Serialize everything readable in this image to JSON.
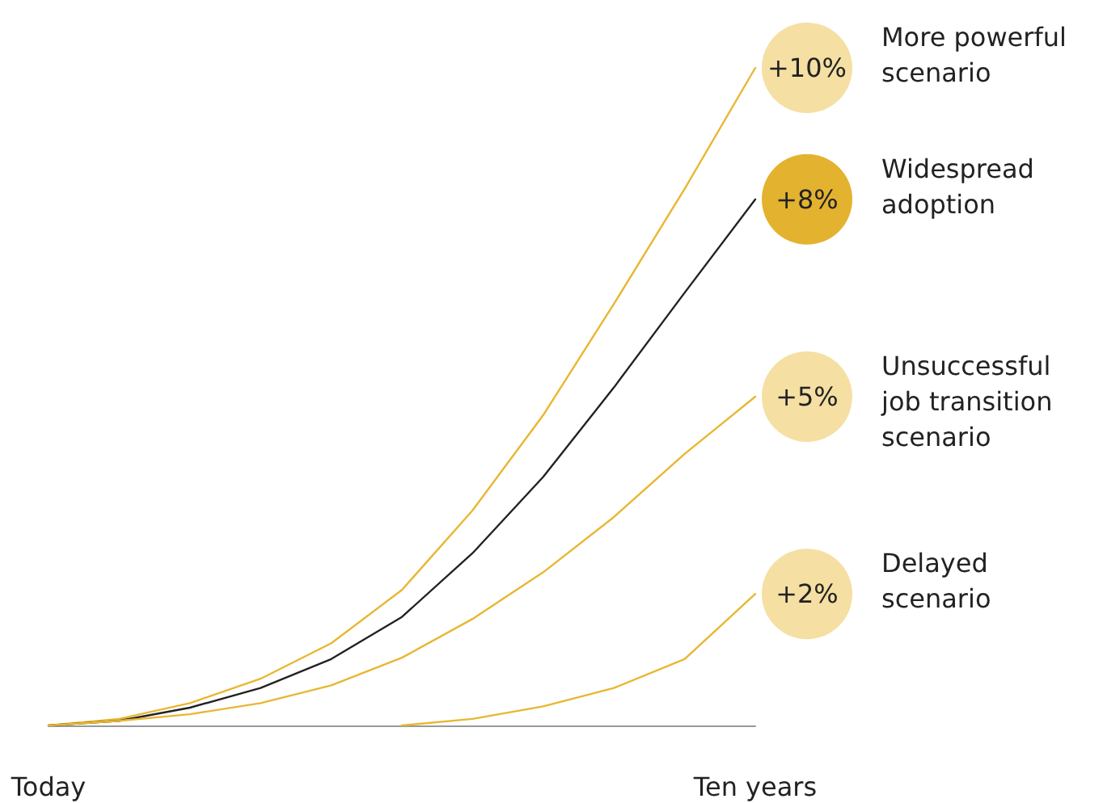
{
  "chart_data": {
    "type": "line",
    "categories": [
      "Today",
      null,
      null,
      null,
      null,
      null,
      null,
      null,
      null,
      null,
      "Ten years"
    ],
    "series": [
      {
        "name": "More powerful scenario",
        "color": "#e8b731",
        "values": [
          0,
          0.1,
          0.34,
          0.71,
          1.25,
          2.06,
          3.27,
          4.72,
          6.41,
          8.16,
          10
        ],
        "value_labels": [
          null,
          null,
          null,
          null,
          null,
          null,
          null,
          null,
          null,
          null,
          "+10%"
        ]
      },
      {
        "name": "Widespread adoption",
        "color": "#222222",
        "values": [
          0,
          0.07,
          0.27,
          0.57,
          1.01,
          1.65,
          2.62,
          3.78,
          5.14,
          6.58,
          8
        ],
        "value_labels": [
          null,
          null,
          null,
          null,
          null,
          null,
          null,
          null,
          null,
          null,
          "+8%"
        ]
      },
      {
        "name": "Unsuccessful job transition scenario",
        "color": "#e8b731",
        "values": [
          0,
          0.07,
          0.17,
          0.34,
          0.61,
          1.03,
          1.62,
          2.33,
          3.17,
          4.13,
          5
        ],
        "value_labels": [
          null,
          null,
          null,
          null,
          null,
          null,
          null,
          null,
          null,
          null,
          "+5%"
        ]
      },
      {
        "name": "Delayed scenario",
        "color": "#e8b731",
        "values": [
          null,
          null,
          null,
          null,
          null,
          0,
          0.1,
          0.29,
          0.57,
          1.01,
          2
        ],
        "value_labels": [
          null,
          null,
          null,
          null,
          null,
          null,
          null,
          null,
          null,
          null,
          "+2%"
        ]
      }
    ],
    "tick_labels": "x",
    "legend": false,
    "grid": false,
    "marker": "none",
    "line_style": "solid"
  }
}
